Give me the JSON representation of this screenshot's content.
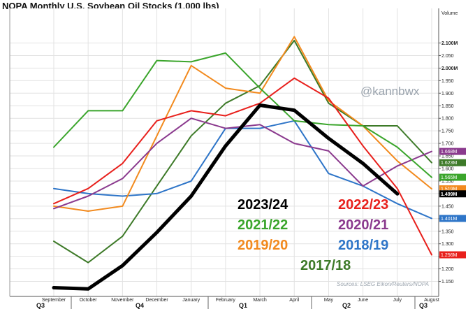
{
  "chart_data": {
    "type": "line",
    "title": "NOPA Monthly U.S. Soybean Oil Stocks (1,000 lbs)",
    "watermark": "@kannbwx",
    "source": "Sources: LSEG Eikon/Reuters/NOPA",
    "ylabel": "Volume",
    "ylim": [
      1.1,
      2.15
    ],
    "y_ticks": [
      "1.150",
      "1.200",
      "1.250",
      "1.300",
      "1.350",
      "1.400",
      "1.450",
      "1.500",
      "1.550",
      "1.600",
      "1.650",
      "1.700",
      "1.750",
      "1.800",
      "1.850",
      "1.900",
      "1.950",
      "2.000M",
      "2.050",
      "2.100M"
    ],
    "categories": [
      "September",
      "October",
      "November",
      "December",
      "January",
      "February",
      "March",
      "April",
      "May",
      "June",
      "July",
      "August"
    ],
    "quarters": [
      "Q3",
      "Q4",
      "Q1",
      "Q2",
      "Q3"
    ],
    "series": [
      {
        "name": "2023/24",
        "color": "#000000",
        "values": [
          1.125,
          1.12,
          1.213,
          1.345,
          1.49,
          1.69,
          1.852,
          1.832,
          1.72,
          1.62,
          1.499,
          null
        ]
      },
      {
        "name": "2022/23",
        "color": "#e8201c",
        "values": [
          1.46,
          1.52,
          1.62,
          1.79,
          1.83,
          1.81,
          1.86,
          1.96,
          1.88,
          1.69,
          1.52,
          1.256
        ]
      },
      {
        "name": "2021/22",
        "color": "#3aa52b",
        "values": [
          1.685,
          1.83,
          1.83,
          2.03,
          2.025,
          2.06,
          1.92,
          1.79,
          1.775,
          1.77,
          1.685,
          1.565
        ]
      },
      {
        "name": "2020/21",
        "color": "#8b3a8e",
        "values": [
          1.44,
          1.49,
          1.56,
          1.7,
          1.8,
          1.76,
          1.775,
          1.7,
          1.67,
          1.53,
          1.61,
          1.668
        ]
      },
      {
        "name": "2019/20",
        "color": "#f28a1e",
        "values": [
          1.45,
          1.43,
          1.45,
          1.73,
          2.01,
          1.92,
          1.9,
          2.125,
          1.87,
          1.77,
          1.63,
          1.519
        ]
      },
      {
        "name": "2018/19",
        "color": "#2e75c8",
        "values": [
          1.52,
          1.5,
          1.49,
          1.5,
          1.55,
          1.76,
          1.76,
          1.79,
          1.58,
          1.53,
          1.46,
          1.401
        ]
      },
      {
        "name": "2017/18",
        "color": "#3d7a28",
        "values": [
          1.31,
          1.225,
          1.33,
          1.53,
          1.73,
          1.86,
          1.93,
          2.11,
          1.86,
          1.77,
          1.77,
          1.623
        ]
      }
    ],
    "tags": [
      {
        "label": "1.668M",
        "color": "#8b3a8e",
        "value": 1.668
      },
      {
        "label": "1.623M",
        "color": "#3d7a28",
        "value": 1.623
      },
      {
        "label": "1.565M",
        "color": "#3aa52b",
        "value": 1.565
      },
      {
        "label": "1.519M",
        "color": "#f28a1e",
        "value": 1.519
      },
      {
        "label": "1.499M",
        "color": "#000000",
        "value": 1.499
      },
      {
        "label": "1.401M",
        "color": "#2e75c8",
        "value": 1.401
      },
      {
        "label": "1.256M",
        "color": "#e8201c",
        "value": 1.256
      }
    ],
    "grid": true,
    "legend_position": "bottom-center"
  }
}
